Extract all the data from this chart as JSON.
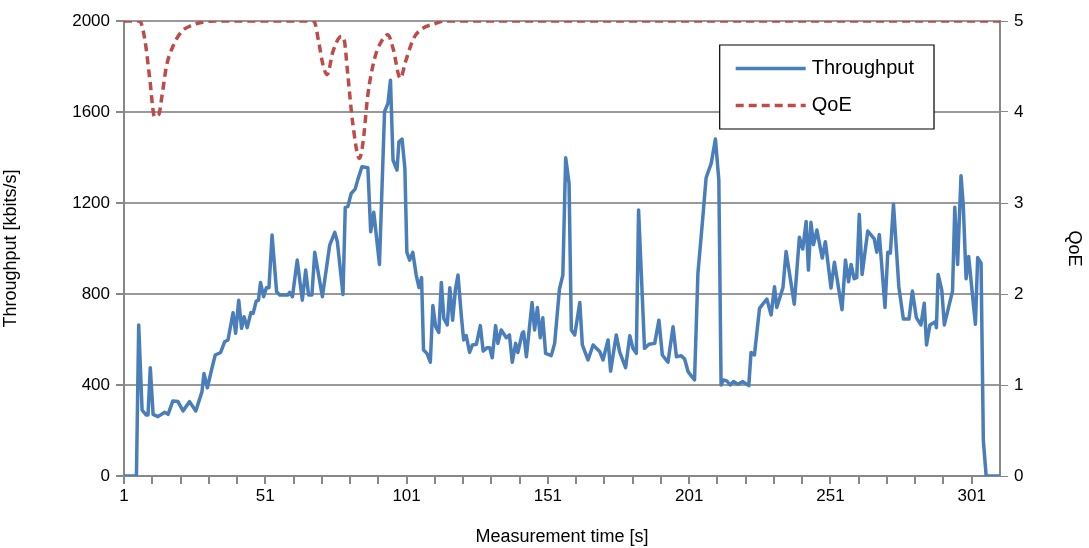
{
  "chart_data": {
    "type": "line",
    "xlabel": "Measurement time [s]",
    "ylabel": "Throughput [kbits/s]",
    "y2label": "QoE",
    "xlim": [
      1,
      311
    ],
    "xticks": [
      1,
      {
        "value": 11,
        "label": null
      },
      {
        "value": 21,
        "label": null
      },
      {
        "value": 31,
        "label": null
      },
      {
        "value": 41,
        "label": null
      },
      51,
      {
        "value": 61,
        "label": null
      },
      {
        "value": 71,
        "label": null
      },
      {
        "value": 81,
        "label": null
      },
      {
        "value": 91,
        "label": null
      },
      101,
      {
        "value": 111,
        "label": null
      },
      {
        "value": 121,
        "label": null
      },
      {
        "value": 131,
        "label": null
      },
      {
        "value": 141,
        "label": null
      },
      151,
      {
        "value": 161,
        "label": null
      },
      {
        "value": 171,
        "label": null
      },
      {
        "value": 181,
        "label": null
      },
      {
        "value": 191,
        "label": null
      },
      201,
      {
        "value": 211,
        "label": null
      },
      {
        "value": 221,
        "label": null
      },
      {
        "value": 231,
        "label": null
      },
      {
        "value": 241,
        "label": null
      },
      251,
      {
        "value": 261,
        "label": null
      },
      {
        "value": 271,
        "label": null
      },
      {
        "value": 281,
        "label": null
      },
      {
        "value": 291,
        "label": null
      },
      301
    ],
    "ylim": [
      0,
      2000
    ],
    "yticks": [
      0,
      400,
      800,
      1200,
      1600,
      2000
    ],
    "y2lim": [
      0,
      5
    ],
    "y2ticks": [
      0,
      1,
      2,
      3,
      4,
      5
    ],
    "grid": "y",
    "legend": "top right",
    "marker": "none",
    "series": [
      {
        "name": "Throughput",
        "color": "#4a7ebb",
        "line_style": "solid",
        "x": [
          1,
          5.4,
          6.2,
          7.4,
          8.9,
          9.5,
          10.3,
          11.3,
          13,
          15.4,
          16.6,
          18.3,
          20.1,
          21.9,
          24.2,
          26.4,
          28.6,
          29.3,
          30.5,
          32.1,
          33.3,
          35.2,
          36.6,
          37.8,
          39.6,
          40.5,
          41.6,
          42.6,
          43.5,
          44.6,
          45.9,
          46.7,
          47.8,
          48.6,
          49.3,
          50.4,
          51.4,
          52.3,
          53.4,
          55,
          56.1,
          59,
          59.6,
          60.6,
          62.3,
          64.1,
          65.3,
          66.3,
          67.5,
          68.5,
          71.2,
          73.8,
          75.6,
          76.5,
          78.5,
          79.3,
          80.2,
          81.4,
          82.8,
          83.8,
          85.2,
          87.3,
          88.3,
          89.4,
          91.4,
          93.2,
          94.4,
          95.3,
          96.2,
          97.6,
          98.3,
          99.4,
          100.4,
          101.1,
          102.1,
          103.2,
          104.4,
          105.4,
          106.3,
          107,
          108.2,
          109.4,
          110.3,
          111.3,
          112.4,
          113.3,
          114.2,
          115.4,
          116.3,
          117.3,
          118.3,
          119.2,
          120.4,
          121.2,
          122.1,
          123.3,
          124.3,
          125.7,
          127.1,
          128.1,
          129.5,
          130.4,
          131.3,
          132.5,
          133.3,
          134.5,
          136.3,
          137.4,
          138.4,
          139.6,
          140.4,
          141.9,
          142.4,
          143.4,
          145.4,
          146.3,
          147.3,
          148.3,
          149.2,
          150.2,
          152.2,
          153.4,
          155.1,
          156.3,
          157.3,
          158.5,
          159.3,
          160.5,
          162.3,
          163.2,
          165.2,
          167,
          169.4,
          170.5,
          172.3,
          173.2,
          175.2,
          176.4,
          178.5,
          180,
          181.1,
          182.3,
          183.1,
          185.2,
          186.8,
          188.8,
          190.3,
          191.5,
          193.5,
          195.3,
          196.5,
          198.2,
          199.4,
          200.6,
          201.7,
          202.9,
          204.1,
          205.6,
          207,
          208.8,
          210.3,
          211.5,
          212.3,
          213.1,
          214.3,
          215.5,
          216.7,
          218.2,
          220,
          222.1,
          222.9,
          224.1,
          225.9,
          228.5,
          230,
          231.2,
          232,
          234.2,
          235.3,
          238.2,
          240,
          241.2,
          242.4,
          243.2,
          244.1,
          245,
          246.2,
          248.1,
          249.2,
          251.2,
          252.4,
          255.1,
          256.3,
          257.4,
          258.3,
          259.4,
          260.3,
          261.2,
          262.2,
          264.2,
          266.5,
          267.4,
          268.3,
          270.3,
          271.3,
          272.2,
          273.3,
          275.2,
          276.8,
          278.8,
          280,
          281.4,
          283,
          284.2,
          285,
          286.2,
          288.1,
          288.5,
          289.1,
          290.4,
          291.3,
          294.2,
          295,
          296,
          297.2,
          298,
          299,
          299.9,
          302.3,
          303.1,
          304.3,
          305.1,
          306.1,
          311
        ],
        "values": [
          0,
          0,
          664,
          290,
          268,
          268,
          476,
          271,
          261,
          280,
          271,
          330,
          327,
          286,
          327,
          286,
          371,
          451,
          388,
          473,
          532,
          543,
          590,
          598,
          718,
          627,
          773,
          649,
          700,
          652,
          718,
          715,
          769,
          773,
          851,
          788,
          828,
          828,
          1059,
          810,
          796,
          796,
          807,
          788,
          949,
          773,
          905,
          796,
          796,
          983,
          788,
          1015,
          1071,
          1030,
          798,
          1181,
          1184,
          1242,
          1261,
          1305,
          1359,
          1355,
          1074,
          1159,
          930,
          1601,
          1638,
          1740,
          1389,
          1345,
          1469,
          1481,
          1352,
          983,
          949,
          983,
          883,
          828,
          872,
          554,
          539,
          500,
          749,
          656,
          631,
          851,
          692,
          664,
          828,
          685,
          822,
          883,
          700,
          598,
          617,
          543,
          576,
          579,
          661,
          549,
          564,
          564,
          520,
          661,
          583,
          642,
          608,
          620,
          500,
          583,
          543,
          627,
          634,
          524,
          763,
          642,
          741,
          608,
          696,
          539,
          529,
          583,
          822,
          883,
          1399,
          1286,
          642,
          620,
          763,
          576,
          510,
          576,
          546,
          510,
          598,
          461,
          620,
          546,
          476,
          617,
          561,
          539,
          1169,
          561,
          579,
          583,
          685,
          532,
          500,
          656,
          524,
          529,
          514,
          459,
          441,
          422,
          891,
          1103,
          1311,
          1374,
          1481,
          1301,
          400,
          422,
          418,
          400,
          415,
          403,
          415,
          397,
          543,
          532,
          737,
          778,
          708,
          832,
          741,
          829,
          987,
          755,
          1049,
          998,
          1119,
          905,
          1115,
          1017,
          1081,
          958,
          1030,
          826,
          940,
          731,
          949,
          854,
          930,
          867,
          872,
          1150,
          886,
          1077,
          1042,
          984,
          1061,
          741,
          984,
          980,
          1195,
          832,
          690,
          690,
          813,
          696,
          664,
          759,
          576,
          664,
          678,
          652,
          886,
          817,
          664,
          813,
          1181,
          930,
          1320,
          1190,
          867,
          965,
          667,
          960,
          936,
          158,
          0,
          0
        ]
      },
      {
        "name": "QoE",
        "color": "#be4b48",
        "line_style": "dashed",
        "axis": "y2",
        "x": [
          1,
          6.5,
          8.3,
          10.1,
          11.8,
          13.3,
          14.5,
          16,
          18.3,
          21.3,
          24.8,
          29.5,
          33,
          68.2,
          69.9,
          71.4,
          72.9,
          74.9,
          77.9,
          78.8,
          80.2,
          81.9,
          84.3,
          85.6,
          87.3,
          89.7,
          92,
          94.4,
          96.2,
          98.8,
          100.6,
          103.5,
          106.3,
          111,
          114.5,
          311
        ],
        "values": [
          5,
          5,
          4.81,
          4.37,
          3.95,
          3.97,
          4.19,
          4.5,
          4.72,
          4.88,
          4.95,
          4.99,
          5,
          5,
          4.77,
          4.52,
          4.41,
          4.66,
          4.83,
          4.81,
          4.41,
          3.89,
          3.49,
          3.67,
          4.19,
          4.59,
          4.77,
          4.85,
          4.7,
          4.37,
          4.55,
          4.81,
          4.91,
          4.97,
          5,
          5
        ]
      }
    ]
  }
}
